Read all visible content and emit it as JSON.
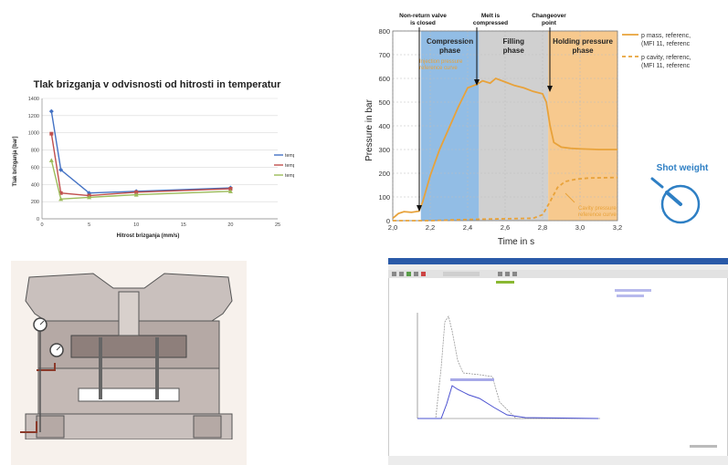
{
  "chart_data": [
    {
      "type": "line",
      "title": "Tlak brizganja v odvisnosti od hitrosti in temperatur",
      "xlabel": "Hitrost brizganja (mm/s)",
      "ylabel": "Tlak brizganja [bar]",
      "xlim": [
        0,
        25
      ],
      "ylim": [
        0,
        1400
      ],
      "xticks": [
        "0",
        "5",
        "10",
        "15",
        "20",
        "25"
      ],
      "yticks": [
        "0",
        "200",
        "400",
        "600",
        "800",
        "1000",
        "1200",
        "1400"
      ],
      "grid": true,
      "legend": "right",
      "series": [
        {
          "name": "temperatura 200°C",
          "color": "#4472c4",
          "marker": "diamond",
          "x": [
            1,
            2,
            5,
            10,
            20
          ],
          "y": [
            1250,
            570,
            300,
            320,
            360
          ]
        },
        {
          "name": "temperatura 210°C",
          "color": "#c0504d",
          "marker": "square",
          "x": [
            1,
            2,
            5,
            10,
            20
          ],
          "y": [
            990,
            300,
            270,
            310,
            350
          ]
        },
        {
          "name": "temperatura 220°C",
          "color": "#9bbb59",
          "marker": "triangle",
          "x": [
            1,
            2,
            5,
            10,
            20
          ],
          "y": [
            680,
            230,
            250,
            280,
            320
          ]
        }
      ]
    },
    {
      "type": "line",
      "xlabel": "Time in s",
      "ylabel": "Pressure in bar",
      "xlim": [
        2.0,
        3.2
      ],
      "ylim": [
        0,
        800
      ],
      "xticks": [
        "2,0",
        "2,2",
        "2,4",
        "2,6",
        "2,8",
        "3,0",
        "3,2"
      ],
      "yticks": [
        "0",
        "100",
        "200",
        "300",
        "400",
        "500",
        "600",
        "700",
        "800"
      ],
      "grid": true,
      "phases": [
        {
          "label": "Compression phase",
          "from": 2.15,
          "to": 2.46,
          "color": "#7fb2e0"
        },
        {
          "label": "Filling phase",
          "from": 2.46,
          "to": 2.83,
          "color": "#c8c8c8"
        },
        {
          "label": "Holding pressure phase",
          "from": 2.83,
          "to": 3.2,
          "color": "#f6c07a"
        }
      ],
      "annotations": {
        "non_return": "Non-return valve is closed",
        "melt": "Melt is compressed",
        "changeover": "Changeover point",
        "injection_ref": "Injection pressure reference curve",
        "cavity_ref": "Cavity pressure reference curve"
      },
      "series": [
        {
          "name": "p mass, referenc (MFI 11, referenc",
          "color": "#e8a23a",
          "dash": false,
          "x": [
            2.0,
            2.03,
            2.06,
            2.1,
            2.14,
            2.16,
            2.2,
            2.25,
            2.3,
            2.35,
            2.4,
            2.45,
            2.48,
            2.52,
            2.55,
            2.6,
            2.65,
            2.7,
            2.75,
            2.8,
            2.82,
            2.84,
            2.86,
            2.9,
            2.95,
            3.0,
            3.1,
            3.2
          ],
          "y": [
            10,
            30,
            38,
            35,
            40,
            80,
            190,
            300,
            390,
            480,
            560,
            575,
            590,
            580,
            600,
            585,
            570,
            560,
            545,
            535,
            500,
            400,
            330,
            310,
            305,
            303,
            300,
            300
          ]
        },
        {
          "name": "p cavity, referenc (MFI 11, referenc",
          "color": "#e8a23a",
          "dash": true,
          "x": [
            2.0,
            2.2,
            2.4,
            2.6,
            2.75,
            2.8,
            2.84,
            2.88,
            2.92,
            2.98,
            3.05,
            3.2
          ],
          "y": [
            0,
            0,
            5,
            8,
            10,
            25,
            80,
            140,
            165,
            175,
            180,
            182
          ]
        }
      ],
      "widget_label": "Shot weight"
    }
  ]
}
